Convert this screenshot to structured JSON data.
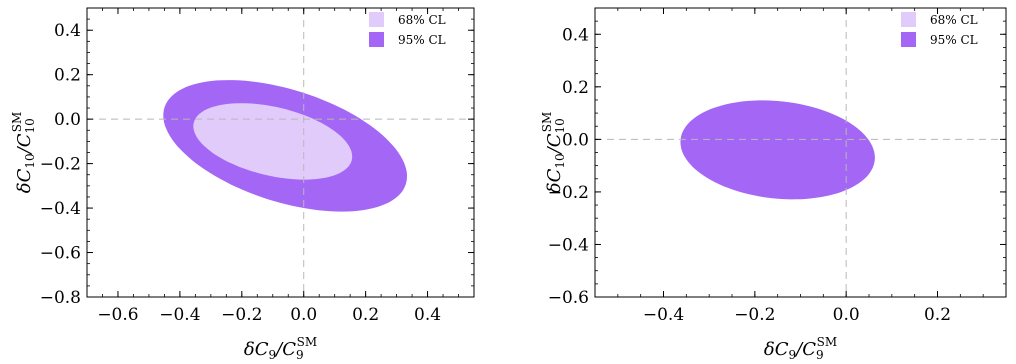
{
  "colors": {
    "cl68": "#e0cbfa",
    "cl95": "#a466f5",
    "axis": "#000000",
    "reference_line": "#b8b8b8"
  },
  "chart_data": [
    {
      "type": "contour",
      "xlabel": "δC9/C9SM",
      "ylabel": "δC10/C10SM",
      "xlim": [
        -0.7,
        0.55
      ],
      "ylim": [
        -0.8,
        0.5
      ],
      "xticks": [
        -0.6,
        -0.4,
        -0.2,
        0.0,
        0.2,
        0.4
      ],
      "xtick_labels": [
        "−0.6",
        "−0.4",
        "−0.2",
        "0.0",
        "0.2",
        "0.4"
      ],
      "yticks": [
        -0.8,
        -0.6,
        -0.4,
        -0.2,
        0.0,
        0.2,
        0.4
      ],
      "ytick_labels": [
        "−0.8",
        "−0.6",
        "−0.4",
        "−0.2",
        "0.0",
        "0.2",
        "0.4"
      ],
      "reference_lines": {
        "x": 0.0,
        "y": 0.0
      },
      "grid": false,
      "legend": {
        "position": "top-right",
        "entries": [
          {
            "label": "68% CL",
            "color_key": "cl68"
          },
          {
            "label": "95% CL",
            "color_key": "cl95"
          }
        ]
      },
      "regions": [
        {
          "name": "95% CL",
          "color_key": "cl95",
          "center": [
            -0.06,
            -0.12
          ],
          "semi_major": 0.43,
          "semi_minor": 0.24,
          "angle_deg": -29
        },
        {
          "name": "68% CL",
          "color_key": "cl68",
          "center": [
            -0.1,
            -0.1
          ],
          "semi_major": 0.27,
          "semi_minor": 0.15,
          "angle_deg": -22
        }
      ]
    },
    {
      "type": "contour",
      "xlabel": "δC9/C9SM",
      "ylabel": "δC10/C10SM",
      "xlim": [
        -0.55,
        0.35
      ],
      "ylim": [
        -0.6,
        0.5
      ],
      "xticks": [
        -0.4,
        -0.2,
        0.0,
        0.2
      ],
      "xtick_labels": [
        "−0.4",
        "−0.2",
        "0.0",
        "0.2"
      ],
      "yticks": [
        -0.6,
        -0.4,
        -0.2,
        0.0,
        0.2,
        0.4
      ],
      "ytick_labels": [
        "−0.6",
        "−0.4",
        "−0.2",
        "0.0",
        "0.2",
        "0.4"
      ],
      "reference_lines": {
        "x": 0.0,
        "y": 0.0
      },
      "grid": false,
      "legend": {
        "position": "top-right",
        "entries": [
          {
            "label": "68% CL",
            "color_key": "cl68"
          },
          {
            "label": "95% CL",
            "color_key": "cl95"
          }
        ]
      },
      "regions": [
        {
          "name": "95% CL",
          "color_key": "cl95",
          "center": [
            -0.15,
            -0.04
          ],
          "semi_major": 0.22,
          "semi_minor": 0.18,
          "angle_deg": -26
        }
      ]
    }
  ]
}
